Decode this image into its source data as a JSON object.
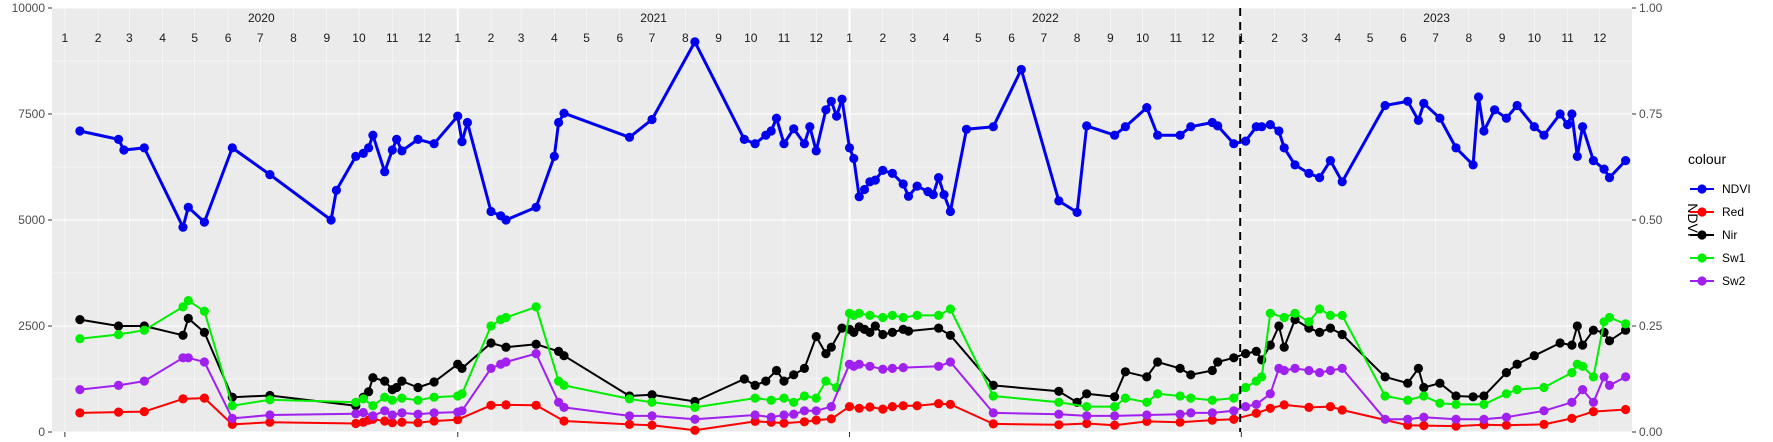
{
  "chart_data": {
    "type": "line",
    "xlabel": "",
    "ylabel_left": "",
    "ylabel_right": "NDVI",
    "ylim_left": [
      0,
      10000
    ],
    "ylim_right": [
      0,
      1
    ],
    "yticks_left": [
      "0",
      "2500",
      "5000",
      "7500",
      "10000"
    ],
    "yticks_right": [
      "0.00",
      "0.25",
      "0.50",
      "0.75",
      "1.00"
    ],
    "xlim": [
      "2019-12-20",
      "2023-12-31"
    ],
    "month_labels": [
      "1",
      "2",
      "3",
      "4",
      "5",
      "6",
      "7",
      "8",
      "9",
      "10",
      "11",
      "12"
    ],
    "year_labels": [
      "2020",
      "2021",
      "2022",
      "2023"
    ],
    "vline_date": "2022-12-31",
    "legend": {
      "title": "colour",
      "position": "right"
    },
    "series": [
      {
        "name": "NDVI",
        "axis": "right",
        "color": "#0000ee",
        "x": [
          "2020-01-15",
          "2020-02-20",
          "2020-02-25",
          "2020-03-15",
          "2020-04-20",
          "2020-04-25",
          "2020-05-10",
          "2020-06-05",
          "2020-07-10",
          "2020-09-05",
          "2020-09-10",
          "2020-09-28",
          "2020-10-05",
          "2020-10-10",
          "2020-10-14",
          "2020-10-25",
          "2020-11-01",
          "2020-11-05",
          "2020-11-10",
          "2020-11-25",
          "2020-12-10",
          "2021-01-01",
          "2021-01-05",
          "2021-01-10",
          "2021-02-01",
          "2021-02-10",
          "2021-02-15",
          "2021-03-15",
          "2021-04-01",
          "2021-04-05",
          "2021-04-10",
          "2021-06-10",
          "2021-07-01",
          "2021-08-10",
          "2021-09-25",
          "2021-10-05",
          "2021-10-15",
          "2021-10-20",
          "2021-10-25",
          "2021-11-01",
          "2021-11-10",
          "2021-11-20",
          "2021-11-25",
          "2021-12-01",
          "2021-12-10",
          "2021-12-15",
          "2021-12-20",
          "2021-12-25",
          "2022-01-01",
          "2022-01-05",
          "2022-01-10",
          "2022-01-15",
          "2022-01-20",
          "2022-01-25",
          "2022-02-01",
          "2022-02-10",
          "2022-02-20",
          "2022-02-25",
          "2022-03-05",
          "2022-03-15",
          "2022-03-20",
          "2022-03-25",
          "2022-03-30",
          "2022-04-05",
          "2022-04-20",
          "2022-05-15",
          "2022-06-10",
          "2022-07-15",
          "2022-08-01",
          "2022-08-10",
          "2022-09-05",
          "2022-09-15",
          "2022-10-05",
          "2022-10-15",
          "2022-11-05",
          "2022-11-15",
          "2022-12-05",
          "2022-12-10",
          "2022-12-25",
          "2023-01-05",
          "2023-01-15",
          "2023-01-20",
          "2023-01-28",
          "2023-02-05",
          "2023-02-10",
          "2023-02-20",
          "2023-03-05",
          "2023-03-15",
          "2023-03-25",
          "2023-04-05",
          "2023-05-15",
          "2023-06-05",
          "2023-06-15",
          "2023-06-20",
          "2023-07-05",
          "2023-07-20",
          "2023-08-05",
          "2023-08-10",
          "2023-08-15",
          "2023-08-25",
          "2023-09-05",
          "2023-09-15",
          "2023-10-01",
          "2023-10-10",
          "2023-10-25",
          "2023-11-01",
          "2023-11-05",
          "2023-11-10",
          "2023-11-15",
          "2023-11-25",
          "2023-12-05",
          "2023-12-10",
          "2023-12-25"
        ],
        "values": [
          0.71,
          0.69,
          0.665,
          0.67,
          0.483,
          0.53,
          0.495,
          0.67,
          0.607,
          0.5,
          0.57,
          0.65,
          0.657,
          0.67,
          0.7,
          0.614,
          0.665,
          0.69,
          0.663,
          0.69,
          0.68,
          0.745,
          0.685,
          0.73,
          0.52,
          0.51,
          0.5,
          0.53,
          0.65,
          0.73,
          0.752,
          0.695,
          0.737,
          0.92,
          0.69,
          0.68,
          0.7,
          0.71,
          0.74,
          0.68,
          0.715,
          0.68,
          0.72,
          0.663,
          0.76,
          0.78,
          0.745,
          0.785,
          0.67,
          0.645,
          0.555,
          0.572,
          0.59,
          0.594,
          0.617,
          0.61,
          0.585,
          0.556,
          0.58,
          0.567,
          0.56,
          0.6,
          0.56,
          0.52,
          0.714,
          0.72,
          0.855,
          0.545,
          0.518,
          0.722,
          0.7,
          0.72,
          0.765,
          0.7,
          0.7,
          0.72,
          0.73,
          0.722,
          0.68,
          0.686,
          0.72,
          0.72,
          0.725,
          0.71,
          0.67,
          0.63,
          0.61,
          0.6,
          0.64,
          0.59,
          0.77,
          0.78,
          0.735,
          0.775,
          0.74,
          0.67,
          0.63,
          0.79,
          0.71,
          0.76,
          0.74,
          0.77,
          0.72,
          0.7,
          0.75,
          0.725,
          0.75,
          0.65,
          0.72,
          0.64,
          0.62,
          0.6,
          0.64
        ]
      },
      {
        "name": "Red",
        "axis": "left",
        "color": "#ff0000",
        "x": [
          "2020-01-15",
          "2020-02-20",
          "2020-03-15",
          "2020-04-20",
          "2020-05-10",
          "2020-06-05",
          "2020-07-10",
          "2020-09-28",
          "2020-10-05",
          "2020-10-10",
          "2020-10-14",
          "2020-10-25",
          "2020-11-01",
          "2020-11-10",
          "2020-11-25",
          "2020-12-10",
          "2021-01-01",
          "2021-02-01",
          "2021-02-15",
          "2021-03-15",
          "2021-04-10",
          "2021-06-10",
          "2021-07-01",
          "2021-08-10",
          "2021-10-05",
          "2021-10-20",
          "2021-11-01",
          "2021-11-20",
          "2021-12-01",
          "2021-12-15",
          "2022-01-01",
          "2022-01-10",
          "2022-01-20",
          "2022-02-01",
          "2022-02-10",
          "2022-02-20",
          "2022-03-05",
          "2022-03-25",
          "2022-04-05",
          "2022-05-15",
          "2022-07-15",
          "2022-08-10",
          "2022-09-05",
          "2022-10-05",
          "2022-11-05",
          "2022-12-05",
          "2022-12-25",
          "2023-01-15",
          "2023-01-28",
          "2023-02-10",
          "2023-03-05",
          "2023-03-25",
          "2023-04-05",
          "2023-06-05",
          "2023-06-20",
          "2023-07-20",
          "2023-08-15",
          "2023-09-05",
          "2023-10-10",
          "2023-11-05",
          "2023-11-25",
          "2023-12-25"
        ],
        "values": [
          450,
          470,
          480,
          780,
          800,
          180,
          230,
          200,
          230,
          280,
          300,
          260,
          220,
          230,
          220,
          260,
          290,
          630,
          640,
          630,
          260,
          180,
          160,
          40,
          250,
          230,
          210,
          240,
          280,
          310,
          600,
          560,
          590,
          540,
          600,
          620,
          620,
          670,
          650,
          190,
          170,
          200,
          160,
          250,
          230,
          280,
          300,
          440,
          560,
          640,
          580,
          600,
          520,
          160,
          150,
          140,
          170,
          160,
          180,
          320,
          480,
          530
        ]
      },
      {
        "name": "Nir",
        "axis": "left",
        "color": "#000000",
        "x": [
          "2020-01-15",
          "2020-02-20",
          "2020-03-15",
          "2020-04-20",
          "2020-04-25",
          "2020-05-10",
          "2020-06-05",
          "2020-07-10",
          "2020-09-28",
          "2020-10-05",
          "2020-10-10",
          "2020-10-14",
          "2020-10-25",
          "2020-11-01",
          "2020-11-05",
          "2020-11-10",
          "2020-11-25",
          "2020-12-10",
          "2021-01-01",
          "2021-01-05",
          "2021-02-01",
          "2021-02-15",
          "2021-03-15",
          "2021-04-05",
          "2021-04-10",
          "2021-06-10",
          "2021-07-01",
          "2021-08-10",
          "2021-09-25",
          "2021-10-05",
          "2021-10-15",
          "2021-10-25",
          "2021-11-01",
          "2021-11-10",
          "2021-11-20",
          "2021-12-01",
          "2021-12-10",
          "2021-12-15",
          "2021-12-25",
          "2022-01-01",
          "2022-01-05",
          "2022-01-10",
          "2022-01-15",
          "2022-01-20",
          "2022-01-25",
          "2022-02-01",
          "2022-02-10",
          "2022-02-20",
          "2022-02-25",
          "2022-03-25",
          "2022-04-05",
          "2022-05-15",
          "2022-07-15",
          "2022-08-01",
          "2022-08-10",
          "2022-09-05",
          "2022-09-15",
          "2022-10-05",
          "2022-10-15",
          "2022-11-05",
          "2022-11-15",
          "2022-12-05",
          "2022-12-10",
          "2022-12-25",
          "2023-01-05",
          "2023-01-15",
          "2023-01-20",
          "2023-01-28",
          "2023-02-05",
          "2023-02-10",
          "2023-02-20",
          "2023-03-05",
          "2023-03-15",
          "2023-03-25",
          "2023-04-05",
          "2023-05-15",
          "2023-06-05",
          "2023-06-15",
          "2023-06-20",
          "2023-07-05",
          "2023-07-20",
          "2023-08-05",
          "2023-08-15",
          "2023-09-05",
          "2023-09-15",
          "2023-10-01",
          "2023-10-25",
          "2023-11-05",
          "2023-11-10",
          "2023-11-15",
          "2023-11-25",
          "2023-12-05",
          "2023-12-10",
          "2023-12-25"
        ],
        "values": [
          2650,
          2500,
          2500,
          2280,
          2680,
          2350,
          820,
          860,
          620,
          820,
          950,
          1280,
          1200,
          1000,
          1050,
          1200,
          1050,
          1180,
          1600,
          1500,
          2100,
          2000,
          2070,
          1900,
          1800,
          850,
          880,
          720,
          1250,
          1100,
          1200,
          1450,
          1200,
          1350,
          1500,
          2250,
          1850,
          2000,
          2450,
          2420,
          2350,
          2480,
          2420,
          2350,
          2500,
          2300,
          2350,
          2420,
          2380,
          2450,
          2280,
          1100,
          960,
          700,
          900,
          830,
          1420,
          1300,
          1650,
          1500,
          1350,
          1450,
          1650,
          1750,
          1850,
          1900,
          1700,
          2050,
          2500,
          2000,
          2650,
          2450,
          2350,
          2450,
          2300,
          1300,
          1150,
          1500,
          1050,
          1150,
          850,
          830,
          850,
          1400,
          1600,
          1800,
          2100,
          2050,
          2500,
          2050,
          2400,
          2350,
          2150,
          2400
        ]
      },
      {
        "name": "Sw1",
        "axis": "left",
        "color": "#00ee00",
        "x": [
          "2020-01-15",
          "2020-02-20",
          "2020-03-15",
          "2020-04-20",
          "2020-04-25",
          "2020-05-10",
          "2020-06-05",
          "2020-07-10",
          "2020-09-28",
          "2020-10-05",
          "2020-10-14",
          "2020-10-25",
          "2020-11-01",
          "2020-11-10",
          "2020-11-25",
          "2020-12-10",
          "2021-01-01",
          "2021-01-05",
          "2021-02-01",
          "2021-02-10",
          "2021-02-15",
          "2021-03-15",
          "2021-04-05",
          "2021-04-10",
          "2021-06-10",
          "2021-07-01",
          "2021-08-10",
          "2021-10-05",
          "2021-10-20",
          "2021-11-01",
          "2021-11-10",
          "2021-11-20",
          "2021-12-01",
          "2021-12-10",
          "2021-12-20",
          "2022-01-01",
          "2022-01-05",
          "2022-01-10",
          "2022-01-20",
          "2022-02-01",
          "2022-02-10",
          "2022-02-20",
          "2022-03-05",
          "2022-03-25",
          "2022-04-05",
          "2022-05-15",
          "2022-07-15",
          "2022-08-10",
          "2022-09-05",
          "2022-09-15",
          "2022-10-05",
          "2022-10-15",
          "2022-11-05",
          "2022-11-15",
          "2022-12-05",
          "2022-12-25",
          "2023-01-05",
          "2023-01-15",
          "2023-01-20",
          "2023-01-28",
          "2023-02-10",
          "2023-02-20",
          "2023-03-05",
          "2023-03-15",
          "2023-03-25",
          "2023-04-05",
          "2023-05-15",
          "2023-06-05",
          "2023-06-20",
          "2023-07-05",
          "2023-07-20",
          "2023-08-15",
          "2023-09-05",
          "2023-09-15",
          "2023-10-10",
          "2023-11-05",
          "2023-11-10",
          "2023-11-15",
          "2023-11-25",
          "2023-12-05",
          "2023-12-10",
          "2023-12-25"
        ],
        "values": [
          2200,
          2300,
          2400,
          2950,
          3100,
          2850,
          620,
          760,
          700,
          780,
          620,
          820,
          750,
          800,
          750,
          820,
          850,
          900,
          2500,
          2650,
          2700,
          2950,
          1200,
          1100,
          780,
          700,
          580,
          800,
          750,
          800,
          700,
          850,
          800,
          1200,
          1050,
          2800,
          2750,
          2800,
          2750,
          2700,
          2750,
          2700,
          2750,
          2750,
          2900,
          850,
          700,
          600,
          600,
          800,
          700,
          900,
          850,
          800,
          750,
          800,
          1050,
          1200,
          1300,
          2800,
          2700,
          2800,
          2600,
          2900,
          2750,
          2750,
          850,
          750,
          850,
          680,
          650,
          650,
          900,
          1000,
          1050,
          1400,
          1600,
          1550,
          1300,
          2600,
          2700,
          2550
        ]
      },
      {
        "name": "Sw2",
        "axis": "left",
        "color": "#a020f0",
        "x": [
          "2020-01-15",
          "2020-02-20",
          "2020-03-15",
          "2020-04-20",
          "2020-04-25",
          "2020-05-10",
          "2020-06-05",
          "2020-07-10",
          "2020-09-28",
          "2020-10-05",
          "2020-10-14",
          "2020-10-25",
          "2020-11-01",
          "2020-11-10",
          "2020-11-25",
          "2020-12-10",
          "2021-01-01",
          "2021-01-05",
          "2021-02-01",
          "2021-02-10",
          "2021-02-15",
          "2021-03-15",
          "2021-04-05",
          "2021-04-10",
          "2021-06-10",
          "2021-07-01",
          "2021-08-10",
          "2021-10-05",
          "2021-10-20",
          "2021-11-01",
          "2021-11-10",
          "2021-11-20",
          "2021-12-01",
          "2021-12-15",
          "2022-01-01",
          "2022-01-05",
          "2022-01-10",
          "2022-01-20",
          "2022-02-01",
          "2022-02-10",
          "2022-02-20",
          "2022-03-25",
          "2022-04-05",
          "2022-05-15",
          "2022-07-15",
          "2022-08-10",
          "2022-09-05",
          "2022-10-05",
          "2022-11-05",
          "2022-11-15",
          "2022-12-05",
          "2022-12-25",
          "2023-01-05",
          "2023-01-15",
          "2023-01-28",
          "2023-02-05",
          "2023-02-10",
          "2023-02-20",
          "2023-03-05",
          "2023-03-15",
          "2023-03-25",
          "2023-04-05",
          "2023-05-15",
          "2023-06-05",
          "2023-06-20",
          "2023-07-20",
          "2023-08-15",
          "2023-09-05",
          "2023-10-10",
          "2023-11-05",
          "2023-11-15",
          "2023-11-25",
          "2023-12-05",
          "2023-12-10",
          "2023-12-25"
        ],
        "values": [
          1000,
          1100,
          1200,
          1750,
          1750,
          1650,
          320,
          400,
          430,
          460,
          380,
          500,
          400,
          450,
          420,
          450,
          470,
          500,
          1500,
          1600,
          1650,
          1850,
          700,
          580,
          380,
          380,
          300,
          400,
          350,
          400,
          420,
          500,
          500,
          600,
          1600,
          1550,
          1600,
          1550,
          1480,
          1500,
          1520,
          1550,
          1650,
          450,
          420,
          380,
          380,
          400,
          420,
          450,
          450,
          500,
          600,
          650,
          900,
          1500,
          1450,
          1500,
          1450,
          1400,
          1450,
          1500,
          300,
          300,
          350,
          300,
          300,
          350,
          500,
          700,
          1000,
          700,
          1300,
          1100,
          1300
        ]
      }
    ]
  }
}
